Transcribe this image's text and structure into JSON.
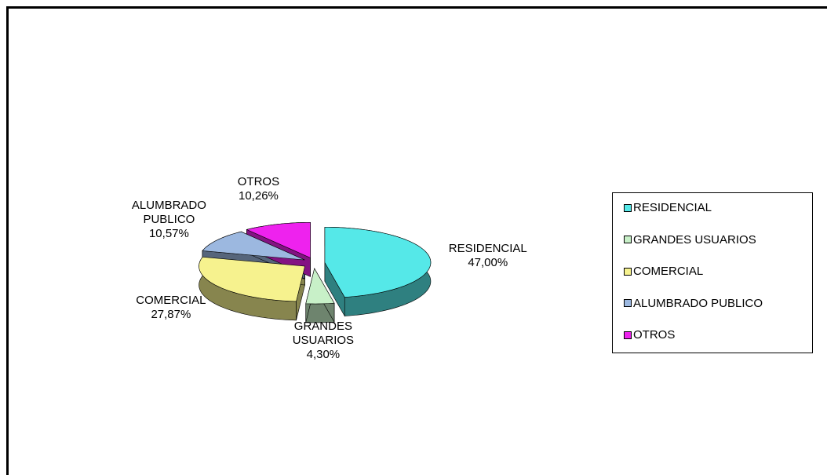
{
  "chart_data": {
    "type": "pie",
    "categories": [
      "RESIDENCIAL",
      "GRANDES USUARIOS",
      "COMERCIAL",
      "ALUMBRADO PUBLICO",
      "OTROS"
    ],
    "values": [
      47.0,
      4.3,
      27.87,
      10.57,
      10.26
    ],
    "value_labels": [
      "47,00%",
      "4,30%",
      "27,87%",
      "10,57%",
      "10,26%"
    ],
    "colors": [
      "#55e8e8",
      "#c8f0c8",
      "#f6f28e",
      "#9cb8e0",
      "#ee22ee"
    ],
    "legend": "right"
  }
}
